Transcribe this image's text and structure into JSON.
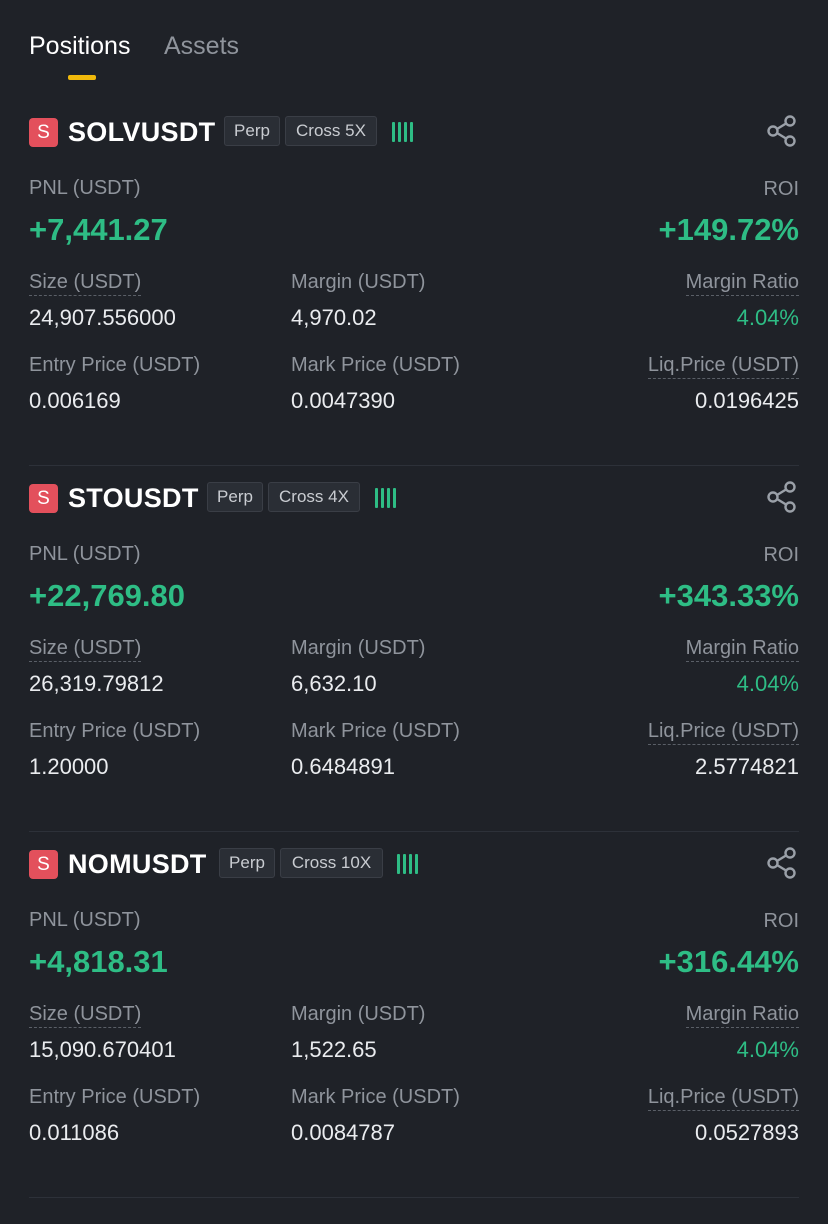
{
  "tabs": {
    "positions": "Positions",
    "assets": "Assets"
  },
  "colors": {
    "background": "#1f2228",
    "profit_green": "#2ebd85",
    "side_red": "#e3505c",
    "tab_indicator": "#f0b90b"
  },
  "positions": [
    {
      "side": "S",
      "symbol": "SOLVUSDT",
      "type": "Perp",
      "leverage": "Cross 5X",
      "pnl_label": "PNL (USDT)",
      "pnl": "+7,441.27",
      "roi_label": "ROI",
      "roi": "+149.72%",
      "size_label": "Size (USDT)",
      "size": "24,907.556000",
      "margin_label": "Margin (USDT)",
      "margin": "4,970.02",
      "margin_ratio_label": "Margin Ratio",
      "margin_ratio": "4.04%",
      "entry_label": "Entry Price (USDT)",
      "entry": "0.006169",
      "mark_label": "Mark Price (USDT)",
      "mark": "0.0047390",
      "liq_label": "Liq.Price (USDT)",
      "liq": "0.0196425"
    },
    {
      "side": "S",
      "symbol": "STOUSDT",
      "type": "Perp",
      "leverage": "Cross 4X",
      "pnl_label": "PNL (USDT)",
      "pnl": "+22,769.80",
      "roi_label": "ROI",
      "roi": "+343.33%",
      "size_label": "Size (USDT)",
      "size": "26,319.79812",
      "margin_label": "Margin (USDT)",
      "margin": "6,632.10",
      "margin_ratio_label": "Margin Ratio",
      "margin_ratio": "4.04%",
      "entry_label": "Entry Price (USDT)",
      "entry": "1.20000",
      "mark_label": "Mark Price (USDT)",
      "mark": "0.6484891",
      "liq_label": "Liq.Price (USDT)",
      "liq": "2.5774821"
    },
    {
      "side": "S",
      "symbol": "NOMUSDT",
      "type": "Perp",
      "leverage": "Cross 10X",
      "pnl_label": "PNL (USDT)",
      "pnl": "+4,818.31",
      "roi_label": "ROI",
      "roi": "+316.44%",
      "size_label": "Size (USDT)",
      "size": "15,090.670401",
      "margin_label": "Margin (USDT)",
      "margin": "1,522.65",
      "margin_ratio_label": "Margin Ratio",
      "margin_ratio": "4.04%",
      "entry_label": "Entry Price (USDT)",
      "entry": "0.011086",
      "mark_label": "Mark Price (USDT)",
      "mark": "0.0084787",
      "liq_label": "Liq.Price (USDT)",
      "liq": "0.0527893"
    }
  ]
}
